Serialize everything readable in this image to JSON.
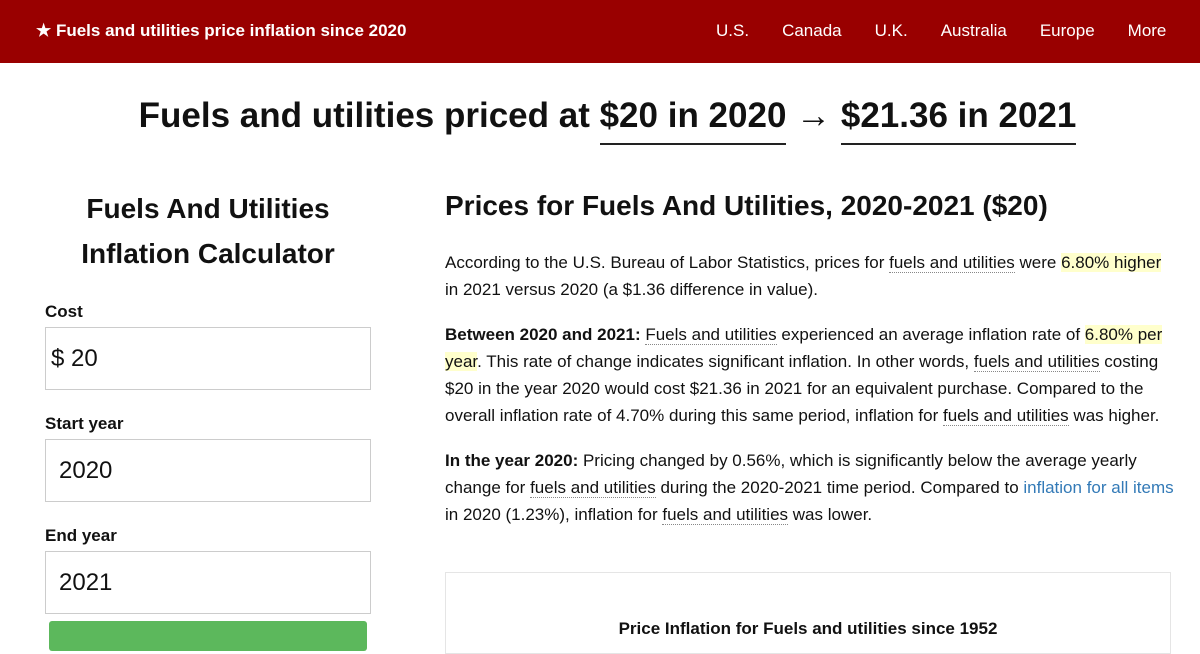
{
  "nav": {
    "brand": "★ Fuels and utilities price inflation since 2020",
    "links": [
      "U.S.",
      "Canada",
      "U.K.",
      "Australia",
      "Europe",
      "More"
    ]
  },
  "headline": {
    "prefix": "Fuels and utilities priced at",
    "from": "$20 in 2020",
    "arrow": "→",
    "to": "$21.36 in 2021"
  },
  "calculator": {
    "title": "Fuels And Utilities Inflation Calculator",
    "fields": [
      {
        "label": "Cost",
        "prefix": "$",
        "value": "20"
      },
      {
        "label": "Start year",
        "value": "2020"
      },
      {
        "label": "End year",
        "value": "2021"
      }
    ]
  },
  "article": {
    "title": "Prices for Fuels And Utilities, 2020-2021 ($20)",
    "paragraphs": [
      [
        "According to the U.S. Bureau of Labor Statistics, prices for ",
        "fuels and utilities",
        " were ",
        "6.80% higher",
        " in 2021 versus 2020 (a $1.36 difference in value)."
      ],
      [
        "Between 2020 and 2021:",
        " ",
        "Fuels and utilities",
        " experienced an average inflation rate of ",
        "6.80% per year",
        ". This rate of change indicates significant inflation. In other words, ",
        "fuels and utilities",
        " costing $20 in the year 2020 would cost $21.36 in 2021 for an equivalent purchase. Compared to the overall inflation rate of 4.70% during this same period, inflation for ",
        "fuels and utilities",
        " was higher."
      ],
      [
        "In the year 2020:",
        " Pricing changed by 0.56%, which is significantly below the average yearly change for ",
        "fuels and utilities",
        " during the 2020-2021 time period. Compared to ",
        "inflation for all items",
        " in 2020 (1.23%), inflation for ",
        "fuels and utilities",
        " was lower."
      ]
    ],
    "chart_title": "Price Inflation for Fuels and utilities since 1952"
  }
}
